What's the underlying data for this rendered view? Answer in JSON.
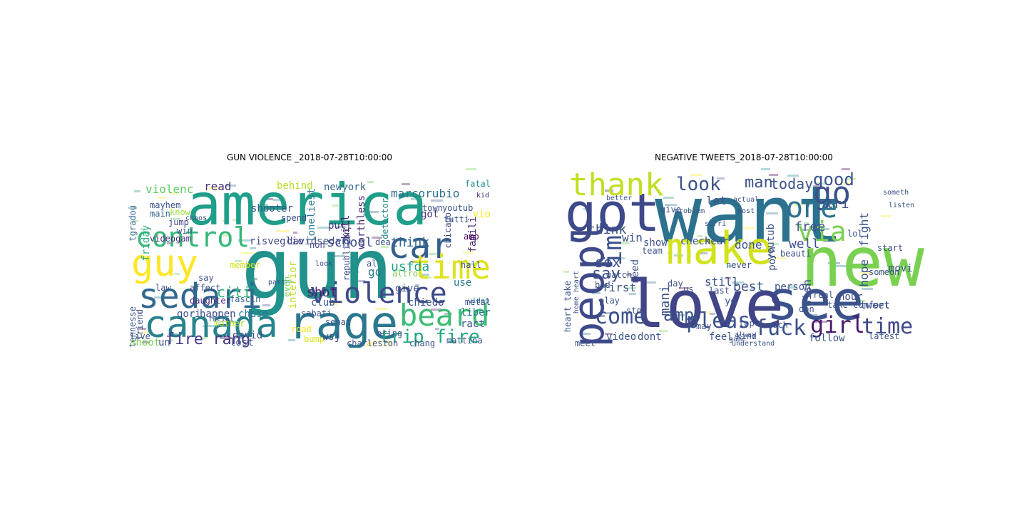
{
  "figure": {
    "panels": [
      {
        "title": "GUN VIOLENCE _2018-07-28T10:00:00",
        "words": [
          {
            "t": "america",
            "c": "#1f9e89"
          },
          {
            "t": "gun",
            "c": "#21918c"
          },
          {
            "t": "control",
            "c": "#35b779"
          },
          {
            "t": "guy",
            "c": "#fde725"
          },
          {
            "t": "sedari",
            "c": "#31688e"
          },
          {
            "t": "canada",
            "c": "#26828e"
          },
          {
            "t": "rage",
            "c": "#2a788e"
          },
          {
            "t": "violence",
            "c": "#3e4a89"
          },
          {
            "t": "beard",
            "c": "#3cbb75"
          },
          {
            "t": "car",
            "c": "#355f8d"
          },
          {
            "t": "time",
            "c": "#dde318"
          },
          {
            "t": "trip fire",
            "c": "#22a884"
          },
          {
            "t": "fire rang",
            "c": "#443983"
          },
          {
            "t": "violenc",
            "c": "#5ec962"
          },
          {
            "t": "read",
            "c": "#46327e"
          },
          {
            "t": "shooter",
            "c": "#3b528b"
          },
          {
            "t": "behind",
            "c": "#b5de2b"
          },
          {
            "t": "newyork",
            "c": "#31688e"
          },
          {
            "t": "marcorubio",
            "c": "#2d708e"
          },
          {
            "t": "fatal",
            "c": "#21918c"
          },
          {
            "t": "kid",
            "c": "#472d7b"
          },
          {
            "t": "famili",
            "c": "#482878"
          },
          {
            "t": "chicago",
            "c": "#3e4989"
          },
          {
            "t": "tutti",
            "c": "#38588c"
          },
          {
            "t": "amp",
            "c": "#440154"
          },
          {
            "t": "hall",
            "c": "#3b528b"
          },
          {
            "t": "video",
            "c": "#2c728e"
          },
          {
            "t": "mayhem",
            "c": "#3b528b"
          },
          {
            "t": "main",
            "c": "#31688e"
          },
          {
            "t": "know",
            "c": "#a0da39"
          },
          {
            "t": "jump",
            "c": "#414487"
          },
          {
            "t": "win",
            "c": "#3b528b"
          },
          {
            "t": "videogam",
            "c": "#472c7a"
          },
          {
            "t": "friday",
            "c": "#29af7f"
          },
          {
            "t": "tgradou",
            "c": "#31688e"
          },
          {
            "t": "choos",
            "c": "#3b528b"
          },
          {
            "t": "risveglio",
            "c": "#414487"
          },
          {
            "t": "davidsedari",
            "c": "#3f4889"
          },
          {
            "t": "loneliest",
            "c": "#2a788e"
          },
          {
            "t": "worthless",
            "c": "#482475"
          },
          {
            "t": "detector",
            "c": "#238a8d"
          },
          {
            "t": "got",
            "c": "#443983"
          },
          {
            "t": "pull",
            "c": "#46337f"
          },
          {
            "t": "school",
            "c": "#3b528b"
          },
          {
            "t": "kill",
            "c": "#481f70"
          },
          {
            "t": "think",
            "c": "#31688e"
          },
          {
            "t": "usfda",
            "c": "#20a386"
          },
          {
            "t": "go",
            "c": "#2a788e"
          },
          {
            "t": "altro",
            "c": "#7ad151"
          },
          {
            "t": "republican",
            "c": "#3e4989"
          },
          {
            "t": "non",
            "c": "#414487"
          },
          {
            "t": "citi",
            "c": "#35b779"
          },
          {
            "t": "say",
            "c": "#3b528b"
          },
          {
            "t": "affect",
            "c": "#3b528b"
          },
          {
            "t": "fascin",
            "c": "#355f8d"
          },
          {
            "t": "law",
            "c": "#3b528b"
          },
          {
            "t": "daughter",
            "c": "#482677"
          },
          {
            "t": "member",
            "c": "#d2e21b"
          },
          {
            "t": "interior",
            "c": "#c2df23"
          },
          {
            "t": "even",
            "c": "#6ccd5a"
          },
          {
            "t": "give",
            "c": "#3b528b"
          },
          {
            "t": "chiedo",
            "c": "#3b528b"
          },
          {
            "t": "use",
            "c": "#2a788e"
          },
          {
            "t": "shot",
            "c": "#481b6d"
          },
          {
            "t": "club",
            "c": "#38598c"
          },
          {
            "t": "metal",
            "c": "#3b528b"
          },
          {
            "t": "liber",
            "c": "#2a788e"
          },
          {
            "t": "ract",
            "c": "#3b528b"
          },
          {
            "t": "gori",
            "c": "#3b528b"
          },
          {
            "t": "happen",
            "c": "#3e4989"
          },
          {
            "t": "mother",
            "c": "#b8de29"
          },
          {
            "t": "chase",
            "c": "#2a788e"
          },
          {
            "t": "sabati",
            "c": "#3b528b"
          },
          {
            "t": "senat",
            "c": "#3b528b"
          },
          {
            "t": "road",
            "c": "#fde725"
          },
          {
            "t": "david",
            "c": "#3b528b"
          },
          {
            "t": "lost",
            "c": "#3b528b"
          },
          {
            "t": "bump",
            "c": "#dde318"
          },
          {
            "t": "wsj",
            "c": "#3b528b"
          },
          {
            "t": "bring",
            "c": "#3b528b"
          },
          {
            "t": "activ",
            "c": "#fde725"
          },
          {
            "t": "chang",
            "c": "#3b528b"
          },
          {
            "t": "mattina",
            "c": "#3b528b"
          },
          {
            "t": "charleston",
            "c": "#3b528b"
          },
          {
            "t": "tennesse",
            "c": "#3b528b"
          },
          {
            "t": "friend",
            "c": "#3b528b"
          },
          {
            "t": "live",
            "c": "#3b528b"
          },
          {
            "t": "shoot",
            "c": "#7ad151"
          },
          {
            "t": "un",
            "c": "#3b528b"
          },
          {
            "t": "facial",
            "c": "#3b528b"
          },
          {
            "t": "town",
            "c": "#3b528b"
          },
          {
            "t": "youtub",
            "c": "#3b528b"
          },
          {
            "t": "dea",
            "c": "#3b528b"
          },
          {
            "t": "al",
            "c": "#3b528b"
          },
          {
            "t": "spend",
            "c": "#3b528b"
          },
          {
            "t": "look",
            "c": "#3b528b"
          },
          {
            "t": "part",
            "c": "#3b528b"
          },
          {
            "t": "vio",
            "c": "#fde725"
          }
        ]
      },
      {
        "title": "NEGATIVE TWEETS_2018-07-28T10:00:00",
        "words": [
          {
            "t": "want",
            "c": "#2c728e"
          },
          {
            "t": "new",
            "c": "#7ad151"
          },
          {
            "t": "make",
            "c": "#d2e21b"
          },
          {
            "t": "see",
            "c": "#3b528b"
          },
          {
            "t": "love",
            "c": "#414487"
          },
          {
            "t": "got",
            "c": "#3e4989"
          },
          {
            "t": "thank",
            "c": "#c2df23"
          },
          {
            "t": "peopl",
            "c": "#3e4989"
          },
          {
            "t": "go",
            "c": "#3b528b"
          },
          {
            "t": "one",
            "c": "#2c728e"
          },
          {
            "t": "via",
            "c": "#7ad151"
          },
          {
            "t": "im",
            "c": "#3b528b"
          },
          {
            "t": "look",
            "c": "#3b528b"
          },
          {
            "t": "man",
            "c": "#3b528b"
          },
          {
            "t": "today",
            "c": "#3b528b"
          },
          {
            "t": "good",
            "c": "#3b528b"
          },
          {
            "t": "tri",
            "c": "#3b528b"
          },
          {
            "t": "let",
            "c": "#3b528b"
          },
          {
            "t": "free",
            "c": "#3b528b"
          },
          {
            "t": "well",
            "c": "#3b528b"
          },
          {
            "t": "come",
            "c": "#3b528b"
          },
          {
            "t": "amp",
            "c": "#3b528b"
          },
          {
            "t": "pleas",
            "c": "#3b528b"
          },
          {
            "t": "fuck",
            "c": "#3b528b"
          },
          {
            "t": "girl",
            "c": "#481b6d"
          },
          {
            "t": "time",
            "c": "#3e4989"
          },
          {
            "t": "sex",
            "c": "#3b528b"
          },
          {
            "t": "say",
            "c": "#3b528b"
          },
          {
            "t": "think",
            "c": "#3b528b"
          },
          {
            "t": "win",
            "c": "#3b528b"
          },
          {
            "t": "check",
            "c": "#3b528b"
          },
          {
            "t": "hear",
            "c": "#3b528b"
          },
          {
            "t": "done",
            "c": "#3b528b"
          },
          {
            "t": "youtub",
            "c": "#3b528b"
          },
          {
            "t": "beauti",
            "c": "#3b528b"
          },
          {
            "t": "fight",
            "c": "#3b528b"
          },
          {
            "t": "hope",
            "c": "#3b528b"
          },
          {
            "t": "still",
            "c": "#3b528b"
          },
          {
            "t": "best",
            "c": "#3b528b"
          },
          {
            "t": "person",
            "c": "#3b528b"
          },
          {
            "t": "porn",
            "c": "#3b528b"
          },
          {
            "t": "wish",
            "c": "#3b528b"
          },
          {
            "t": "first",
            "c": "#3b528b"
          },
          {
            "t": "need",
            "c": "#3b528b"
          },
          {
            "t": "mani",
            "c": "#3b528b"
          },
          {
            "t": "ye",
            "c": "#3b528b"
          },
          {
            "t": "video",
            "c": "#3b528b"
          },
          {
            "t": "dont",
            "c": "#3b528b"
          },
          {
            "t": "follow",
            "c": "#3b528b"
          },
          {
            "t": "watch",
            "c": "#3b528b"
          },
          {
            "t": "play",
            "c": "#3b528b"
          },
          {
            "t": "bad",
            "c": "#3b528b"
          },
          {
            "t": "us",
            "c": "#3b528b"
          },
          {
            "t": "day",
            "c": "#3b528b"
          },
          {
            "t": "show",
            "c": "#3b528b"
          },
          {
            "t": "heart take",
            "c": "#3b528b"
          },
          {
            "t": "home heart",
            "c": "#3b528b"
          },
          {
            "t": "stop",
            "c": "#3b528b"
          },
          {
            "t": "feel",
            "c": "#3b528b"
          },
          {
            "t": "kind",
            "c": "#3b528b"
          },
          {
            "t": "last",
            "c": "#3b528b"
          },
          {
            "t": "don",
            "c": "#3b528b"
          },
          {
            "t": "hour",
            "c": "#3b528b"
          },
          {
            "t": "tweet",
            "c": "#3b528b"
          },
          {
            "t": "movi",
            "c": "#3b528b"
          },
          {
            "t": "real",
            "c": "#3b528b"
          },
          {
            "t": "take comfort",
            "c": "#3b528b"
          },
          {
            "t": "someon",
            "c": "#3b528b"
          },
          {
            "t": "start",
            "c": "#3b528b"
          },
          {
            "t": "team",
            "c": "#3b528b"
          },
          {
            "t": "give",
            "c": "#3b528b"
          },
          {
            "t": "lol",
            "c": "#3b528b"
          },
          {
            "t": "never",
            "c": "#3b528b"
          },
          {
            "t": "much",
            "c": "#3b528b"
          },
          {
            "t": "top",
            "c": "#3b528b"
          },
          {
            "t": "latest",
            "c": "#3b528b"
          },
          {
            "t": "meet",
            "c": "#3b528b"
          },
          {
            "t": "may",
            "c": "#3b528b"
          },
          {
            "t": "someth",
            "c": "#3b528b"
          },
          {
            "t": "actual",
            "c": "#3b528b"
          },
          {
            "t": "alway",
            "c": "#3b528b"
          },
          {
            "t": "sorri",
            "c": "#3b528b"
          },
          {
            "t": "game",
            "c": "#3b528b"
          },
          {
            "t": "post",
            "c": "#3b528b"
          },
          {
            "t": "better",
            "c": "#3b528b"
          },
          {
            "t": "problem",
            "c": "#3b528b"
          },
          {
            "t": "listen",
            "c": "#3b528b"
          },
          {
            "t": "understand",
            "c": "#3b528b"
          }
        ]
      }
    ]
  }
}
